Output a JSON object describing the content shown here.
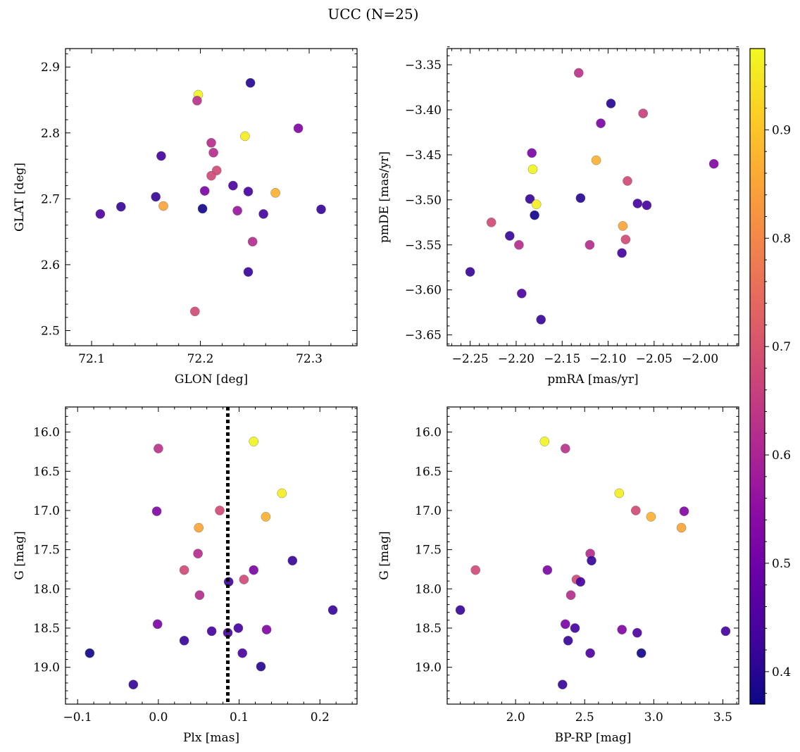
{
  "figure": {
    "title": "UCC (N=25)"
  },
  "chart_data": [
    {
      "type": "scatter",
      "name": "glon-glat",
      "xlabel": "GLON [deg]",
      "ylabel": "GLAT [deg]",
      "xlim": [
        72.076,
        72.344
      ],
      "ylim": [
        2.477,
        2.928
      ],
      "y_inverted": false,
      "xticks": [
        72.1,
        72.2,
        72.3
      ],
      "xtick_labels": [
        "72.1",
        "72.2",
        "72.3"
      ],
      "xminor": [
        72.08,
        72.12,
        72.14,
        72.16,
        72.18,
        72.22,
        72.24,
        72.26,
        72.28,
        72.32,
        72.34
      ],
      "yticks": [
        2.5,
        2.6,
        2.7,
        2.8,
        2.9
      ],
      "ytick_labels": [
        "2.5",
        "2.6",
        "2.7",
        "2.8",
        "2.9"
      ],
      "yminor": [
        2.48,
        2.52,
        2.54,
        2.56,
        2.58,
        2.62,
        2.64,
        2.66,
        2.68,
        2.72,
        2.74,
        2.76,
        2.78,
        2.82,
        2.84,
        2.86,
        2.88,
        2.92
      ],
      "points": [
        {
          "x": 72.198,
          "y": 2.858,
          "c": 0.97
        },
        {
          "x": 72.246,
          "y": 2.876,
          "c": 0.4
        },
        {
          "x": 72.197,
          "y": 2.849,
          "c": 0.63
        },
        {
          "x": 72.29,
          "y": 2.807,
          "c": 0.53
        },
        {
          "x": 72.241,
          "y": 2.795,
          "c": 0.96
        },
        {
          "x": 72.21,
          "y": 2.785,
          "c": 0.62
        },
        {
          "x": 72.212,
          "y": 2.77,
          "c": 0.62
        },
        {
          "x": 72.164,
          "y": 2.765,
          "c": 0.44
        },
        {
          "x": 72.215,
          "y": 2.743,
          "c": 0.68
        },
        {
          "x": 72.21,
          "y": 2.735,
          "c": 0.68
        },
        {
          "x": 72.23,
          "y": 2.72,
          "c": 0.45
        },
        {
          "x": 72.204,
          "y": 2.712,
          "c": 0.52
        },
        {
          "x": 72.244,
          "y": 2.711,
          "c": 0.44
        },
        {
          "x": 72.269,
          "y": 2.709,
          "c": 0.87
        },
        {
          "x": 72.159,
          "y": 2.703,
          "c": 0.42
        },
        {
          "x": 72.166,
          "y": 2.689,
          "c": 0.85
        },
        {
          "x": 72.127,
          "y": 2.688,
          "c": 0.42
        },
        {
          "x": 72.202,
          "y": 2.685,
          "c": 0.38
        },
        {
          "x": 72.311,
          "y": 2.684,
          "c": 0.42
        },
        {
          "x": 72.234,
          "y": 2.682,
          "c": 0.57
        },
        {
          "x": 72.108,
          "y": 2.677,
          "c": 0.45
        },
        {
          "x": 72.258,
          "y": 2.677,
          "c": 0.44
        },
        {
          "x": 72.248,
          "y": 2.635,
          "c": 0.62
        },
        {
          "x": 72.244,
          "y": 2.589,
          "c": 0.42
        },
        {
          "x": 72.195,
          "y": 2.529,
          "c": 0.68
        }
      ]
    },
    {
      "type": "scatter",
      "name": "pm",
      "xlabel": "pmRA [mas/yr]",
      "ylabel": "pmDE [mas/yr]",
      "xlim": [
        -2.275,
        -1.958
      ],
      "ylim": [
        -3.662,
        -3.332
      ],
      "y_inverted": false,
      "xticks": [
        -2.25,
        -2.2,
        -2.15,
        -2.1,
        -2.05,
        -2.0
      ],
      "xtick_labels": [
        "−2.25",
        "−2.20",
        "−2.15",
        "−2.10",
        "−2.05",
        "−2.00"
      ],
      "xminor": [
        -2.27,
        -2.26,
        -2.24,
        -2.23,
        -2.22,
        -2.21,
        -2.19,
        -2.18,
        -2.17,
        -2.16,
        -2.14,
        -2.13,
        -2.12,
        -2.11,
        -2.09,
        -2.08,
        -2.07,
        -2.06,
        -2.04,
        -2.03,
        -2.02,
        -2.01,
        -1.99,
        -1.98,
        -1.97,
        -1.96
      ],
      "yticks": [
        -3.65,
        -3.6,
        -3.55,
        -3.5,
        -3.45,
        -3.4,
        -3.35
      ],
      "ytick_labels": [
        "−3.65",
        "−3.60",
        "−3.55",
        "−3.50",
        "−3.45",
        "−3.40",
        "−3.35"
      ],
      "yminor": [
        -3.66,
        -3.64,
        -3.63,
        -3.62,
        -3.61,
        -3.59,
        -3.58,
        -3.57,
        -3.56,
        -3.54,
        -3.53,
        -3.52,
        -3.51,
        -3.49,
        -3.48,
        -3.47,
        -3.46,
        -3.44,
        -3.43,
        -3.42,
        -3.41,
        -3.39,
        -3.38,
        -3.37,
        -3.36,
        -3.34,
        -3.33
      ],
      "points": [
        {
          "x": -2.132,
          "y": -3.359,
          "c": 0.63
        },
        {
          "x": -2.097,
          "y": -3.393,
          "c": 0.4
        },
        {
          "x": -2.062,
          "y": -3.404,
          "c": 0.66
        },
        {
          "x": -2.108,
          "y": -3.415,
          "c": 0.52
        },
        {
          "x": -2.183,
          "y": -3.448,
          "c": 0.52
        },
        {
          "x": -2.113,
          "y": -3.456,
          "c": 0.87
        },
        {
          "x": -1.985,
          "y": -3.46,
          "c": 0.53
        },
        {
          "x": -2.182,
          "y": -3.466,
          "c": 0.97
        },
        {
          "x": -2.079,
          "y": -3.479,
          "c": 0.68
        },
        {
          "x": -2.13,
          "y": -3.498,
          "c": 0.4
        },
        {
          "x": -2.185,
          "y": -3.499,
          "c": 0.42
        },
        {
          "x": -2.068,
          "y": -3.504,
          "c": 0.44
        },
        {
          "x": -2.178,
          "y": -3.505,
          "c": 0.96
        },
        {
          "x": -2.058,
          "y": -3.506,
          "c": 0.44
        },
        {
          "x": -2.18,
          "y": -3.517,
          "c": 0.38
        },
        {
          "x": -2.227,
          "y": -3.525,
          "c": 0.68
        },
        {
          "x": -2.084,
          "y": -3.529,
          "c": 0.85
        },
        {
          "x": -2.207,
          "y": -3.54,
          "c": 0.42
        },
        {
          "x": -2.081,
          "y": -3.544,
          "c": 0.68
        },
        {
          "x": -2.197,
          "y": -3.55,
          "c": 0.62
        },
        {
          "x": -2.12,
          "y": -3.55,
          "c": 0.62
        },
        {
          "x": -2.085,
          "y": -3.559,
          "c": 0.44
        },
        {
          "x": -2.25,
          "y": -3.58,
          "c": 0.42
        },
        {
          "x": -2.194,
          "y": -3.604,
          "c": 0.45
        },
        {
          "x": -2.173,
          "y": -3.633,
          "c": 0.42
        }
      ]
    },
    {
      "type": "scatter",
      "name": "plx-g",
      "xlabel": "Plx [mas]",
      "ylabel": "G [mag]",
      "xlim": [
        -0.115,
        0.246
      ],
      "ylim": [
        19.47,
        15.68
      ],
      "y_inverted": true,
      "vline": {
        "x": 0.086,
        "style": "dotted",
        "color": "#000000"
      },
      "xticks": [
        -0.1,
        0.0,
        0.1,
        0.2
      ],
      "xtick_labels": [
        "−0.1",
        "0.0",
        "0.1",
        "0.2"
      ],
      "xminor": [
        -0.08,
        -0.06,
        -0.04,
        -0.02,
        0.02,
        0.04,
        0.06,
        0.08,
        0.12,
        0.14,
        0.16,
        0.18,
        0.22,
        0.24
      ],
      "yticks": [
        16.0,
        16.5,
        17.0,
        17.5,
        18.0,
        18.5,
        19.0
      ],
      "ytick_labels": [
        "16.0",
        "16.5",
        "17.0",
        "17.5",
        "18.0",
        "18.5",
        "19.0"
      ],
      "yminor": [
        15.7,
        15.8,
        15.9,
        16.1,
        16.2,
        16.3,
        16.4,
        16.6,
        16.7,
        16.8,
        16.9,
        17.1,
        17.2,
        17.3,
        17.4,
        17.6,
        17.7,
        17.8,
        17.9,
        18.1,
        18.2,
        18.3,
        18.4,
        18.6,
        18.7,
        18.8,
        18.9,
        19.1,
        19.2,
        19.3,
        19.4
      ],
      "points": [
        {
          "x": 0.118,
          "y": 16.12,
          "c": 0.97
        },
        {
          "x": 0.0,
          "y": 16.21,
          "c": 0.63
        },
        {
          "x": 0.153,
          "y": 16.78,
          "c": 0.96
        },
        {
          "x": -0.002,
          "y": 17.01,
          "c": 0.53
        },
        {
          "x": 0.076,
          "y": 17.0,
          "c": 0.68
        },
        {
          "x": 0.133,
          "y": 17.08,
          "c": 0.87
        },
        {
          "x": 0.05,
          "y": 17.22,
          "c": 0.85
        },
        {
          "x": 0.049,
          "y": 17.55,
          "c": 0.62
        },
        {
          "x": 0.166,
          "y": 17.64,
          "c": 0.42
        },
        {
          "x": 0.032,
          "y": 17.76,
          "c": 0.68
        },
        {
          "x": 0.118,
          "y": 17.76,
          "c": 0.52
        },
        {
          "x": 0.106,
          "y": 17.88,
          "c": 0.68
        },
        {
          "x": 0.087,
          "y": 17.91,
          "c": 0.44
        },
        {
          "x": 0.051,
          "y": 18.08,
          "c": 0.62
        },
        {
          "x": 0.216,
          "y": 18.27,
          "c": 0.42
        },
        {
          "x": -0.001,
          "y": 18.45,
          "c": 0.52
        },
        {
          "x": 0.099,
          "y": 18.5,
          "c": 0.44
        },
        {
          "x": 0.134,
          "y": 18.52,
          "c": 0.53
        },
        {
          "x": 0.066,
          "y": 18.54,
          "c": 0.44
        },
        {
          "x": 0.086,
          "y": 18.56,
          "c": 0.45
        },
        {
          "x": 0.032,
          "y": 18.66,
          "c": 0.42
        },
        {
          "x": -0.085,
          "y": 18.82,
          "c": 0.38
        },
        {
          "x": 0.104,
          "y": 18.82,
          "c": 0.45
        },
        {
          "x": 0.127,
          "y": 18.99,
          "c": 0.4
        },
        {
          "x": -0.031,
          "y": 19.22,
          "c": 0.42
        }
      ]
    },
    {
      "type": "scatter",
      "name": "color-g",
      "xlabel": "BP-RP [mag]",
      "ylabel": "G [mag]",
      "xlim": [
        1.505,
        3.615
      ],
      "ylim": [
        19.47,
        15.68
      ],
      "y_inverted": true,
      "xticks": [
        2.0,
        2.5,
        3.0,
        3.5
      ],
      "xtick_labels": [
        "2.0",
        "2.5",
        "3.0",
        "3.5"
      ],
      "xminor": [
        1.6,
        1.7,
        1.8,
        1.9,
        2.1,
        2.2,
        2.3,
        2.4,
        2.6,
        2.7,
        2.8,
        2.9,
        3.1,
        3.2,
        3.3,
        3.4,
        3.6
      ],
      "yticks": [
        16.0,
        16.5,
        17.0,
        17.5,
        18.0,
        18.5,
        19.0
      ],
      "ytick_labels": [
        "16.0",
        "16.5",
        "17.0",
        "17.5",
        "18.0",
        "18.5",
        "19.0"
      ],
      "yminor": [
        15.7,
        15.8,
        15.9,
        16.1,
        16.2,
        16.3,
        16.4,
        16.6,
        16.7,
        16.8,
        16.9,
        17.1,
        17.2,
        17.3,
        17.4,
        17.6,
        17.7,
        17.8,
        17.9,
        18.1,
        18.2,
        18.3,
        18.4,
        18.6,
        18.7,
        18.8,
        18.9,
        19.1,
        19.2,
        19.3,
        19.4
      ],
      "points": [
        {
          "x": 2.21,
          "y": 16.12,
          "c": 0.97
        },
        {
          "x": 2.36,
          "y": 16.21,
          "c": 0.63
        },
        {
          "x": 2.75,
          "y": 16.78,
          "c": 0.96
        },
        {
          "x": 2.87,
          "y": 17.0,
          "c": 0.68
        },
        {
          "x": 3.22,
          "y": 17.01,
          "c": 0.53
        },
        {
          "x": 2.98,
          "y": 17.08,
          "c": 0.87
        },
        {
          "x": 3.2,
          "y": 17.22,
          "c": 0.85
        },
        {
          "x": 2.54,
          "y": 17.55,
          "c": 0.62
        },
        {
          "x": 2.55,
          "y": 17.64,
          "c": 0.42
        },
        {
          "x": 1.71,
          "y": 17.76,
          "c": 0.68
        },
        {
          "x": 2.23,
          "y": 17.76,
          "c": 0.52
        },
        {
          "x": 2.44,
          "y": 17.88,
          "c": 0.68
        },
        {
          "x": 2.47,
          "y": 17.91,
          "c": 0.44
        },
        {
          "x": 2.4,
          "y": 18.08,
          "c": 0.62
        },
        {
          "x": 1.6,
          "y": 18.27,
          "c": 0.42
        },
        {
          "x": 2.36,
          "y": 18.45,
          "c": 0.52
        },
        {
          "x": 2.43,
          "y": 18.5,
          "c": 0.44
        },
        {
          "x": 2.77,
          "y": 18.52,
          "c": 0.53
        },
        {
          "x": 3.52,
          "y": 18.54,
          "c": 0.44
        },
        {
          "x": 2.88,
          "y": 18.56,
          "c": 0.45
        },
        {
          "x": 2.38,
          "y": 18.66,
          "c": 0.42
        },
        {
          "x": 2.54,
          "y": 18.82,
          "c": 0.45
        },
        {
          "x": 2.91,
          "y": 18.82,
          "c": 0.38
        },
        {
          "x": 2.34,
          "y": 19.22,
          "c": 0.42
        }
      ]
    }
  ],
  "colorbar": {
    "colormap": "plasma",
    "range": [
      0.37,
      0.975
    ],
    "ticks": [
      0.4,
      0.5,
      0.6,
      0.7,
      0.8,
      0.9
    ],
    "tick_labels": [
      "0.4",
      "0.5",
      "0.6",
      "0.7",
      "0.8",
      "0.9"
    ],
    "minor": [
      0.38,
      0.42,
      0.44,
      0.46,
      0.48,
      0.52,
      0.54,
      0.56,
      0.58,
      0.62,
      0.64,
      0.66,
      0.68,
      0.72,
      0.74,
      0.76,
      0.78,
      0.82,
      0.84,
      0.86,
      0.88,
      0.92,
      0.94,
      0.96
    ],
    "stops": [
      "#0d0887",
      "#41049d",
      "#6a00a8",
      "#8f0da4",
      "#b12a90",
      "#cc4778",
      "#e16462",
      "#f2844b",
      "#fca636",
      "#fcce25",
      "#f0f921"
    ]
  }
}
